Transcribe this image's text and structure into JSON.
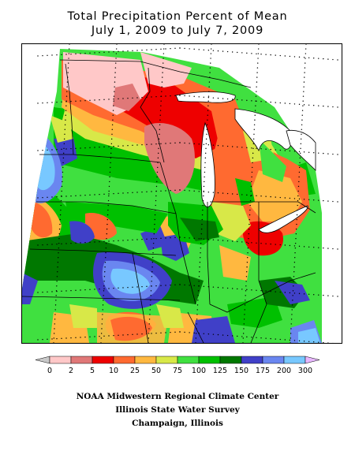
{
  "title": {
    "line1": "Total Precipitation Percent of Mean",
    "line2": "July 1, 2009 to July 7, 2009"
  },
  "legend": {
    "breaks": [
      "0",
      "2",
      "5",
      "10",
      "25",
      "50",
      "75",
      "100",
      "125",
      "150",
      "175",
      "200",
      "300"
    ],
    "colors": [
      "#c8c8c8",
      "#ffc8c8",
      "#e07878",
      "#ee0000",
      "#ff6a30",
      "#ffb840",
      "#d8e848",
      "#40e040",
      "#00c000",
      "#007800",
      "#4040c8",
      "#6a86f0",
      "#78c8ff",
      "#e8b8ff"
    ]
  },
  "credits": {
    "line1": "NOAA Midwestern Regional Climate Center",
    "line2": "Illinois State Water Survey",
    "line3": "Champaign, Illinois"
  },
  "map": {
    "region": "Midwestern United States",
    "colors": {
      "green": "#40e040",
      "med_green": "#00c000",
      "dark_green": "#007800",
      "yellow_green": "#d8e848",
      "yellow": "#ffb840",
      "orange": "#ff6a30",
      "red": "#ee0000",
      "dark_pink": "#e07878",
      "pink": "#ffc8c8",
      "dark_blue": "#4040c8",
      "blue": "#6a86f0",
      "light_blue": "#78c8ff",
      "lake": "#ffffff",
      "background": "#ffffff"
    }
  }
}
